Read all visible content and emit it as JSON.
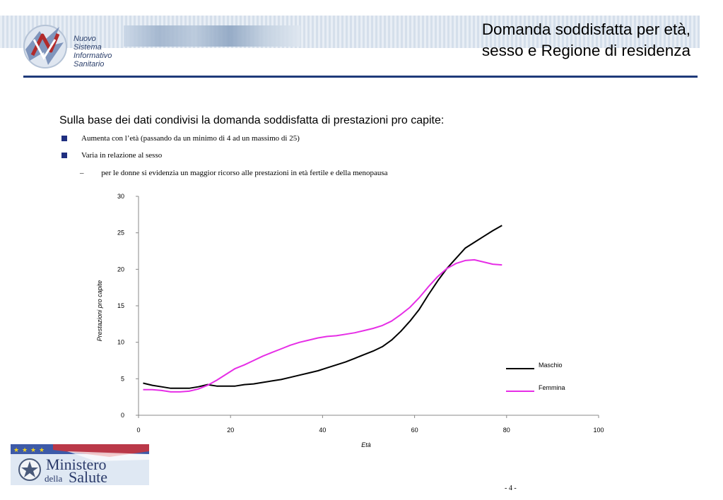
{
  "header": {
    "logo_lines": [
      "Nuovo",
      "Sistema",
      "Informativo",
      "Sanitario"
    ],
    "title_line1": "Domanda soddisfatta per età,",
    "title_line2": "sesso e Regione di residenza"
  },
  "body": {
    "intro": "Sulla base dei dati condivisi la domanda soddisfatta di prestazioni pro capite:",
    "bullet1": "Aumenta con l’età (passando da un minimo di 4 ad un massimo di 25)",
    "bullet2": "Varia in relazione al sesso",
    "sub_bullet": "per le donne si evidenzia un maggior ricorso alle prestazioni in età fertile e della menopausa"
  },
  "chart_data": {
    "type": "line",
    "xlabel": "Età",
    "ylabel": "Prestazioni pro capite",
    "xlim": [
      0,
      100
    ],
    "ylim": [
      0,
      30
    ],
    "xticks": [
      0,
      20,
      40,
      60,
      80,
      100
    ],
    "yticks": [
      0,
      5,
      10,
      15,
      20,
      25,
      30
    ],
    "grid": false,
    "legend_position": "right",
    "series": [
      {
        "name": "Maschio",
        "color": "#000000",
        "x": [
          1,
          3,
          5,
          7,
          9,
          11,
          13,
          15,
          17,
          19,
          21,
          23,
          25,
          27,
          29,
          31,
          33,
          35,
          37,
          39,
          41,
          43,
          45,
          47,
          49,
          51,
          53,
          55,
          57,
          59,
          61,
          63,
          65,
          67,
          69,
          71,
          73,
          75,
          77,
          79
        ],
        "y": [
          4.4,
          4.1,
          3.9,
          3.7,
          3.7,
          3.7,
          3.9,
          4.2,
          4.0,
          4.0,
          4.0,
          4.2,
          4.3,
          4.5,
          4.7,
          4.9,
          5.2,
          5.5,
          5.8,
          6.1,
          6.5,
          6.9,
          7.3,
          7.8,
          8.3,
          8.8,
          9.4,
          10.3,
          11.5,
          12.9,
          14.5,
          16.5,
          18.4,
          20.1,
          21.5,
          22.9,
          23.7,
          24.5,
          25.3,
          26.0
        ]
      },
      {
        "name": "Femmina",
        "color": "#e62ee6",
        "x": [
          1,
          3,
          5,
          7,
          9,
          11,
          13,
          15,
          17,
          19,
          21,
          23,
          25,
          27,
          29,
          31,
          33,
          35,
          37,
          39,
          41,
          43,
          45,
          47,
          49,
          51,
          53,
          55,
          57,
          59,
          61,
          63,
          65,
          67,
          69,
          71,
          73,
          75,
          77,
          79
        ],
        "y": [
          3.5,
          3.5,
          3.4,
          3.2,
          3.2,
          3.3,
          3.6,
          4.1,
          4.8,
          5.6,
          6.4,
          6.9,
          7.5,
          8.1,
          8.6,
          9.1,
          9.6,
          10.0,
          10.3,
          10.6,
          10.8,
          10.9,
          11.1,
          11.3,
          11.6,
          11.9,
          12.3,
          12.9,
          13.8,
          14.8,
          16.1,
          17.6,
          19.0,
          20.1,
          20.8,
          21.2,
          21.3,
          21.0,
          20.7,
          20.6
        ]
      }
    ]
  },
  "footer": {
    "ministero_line1": "Ministero",
    "ministero_line2": "della",
    "ministero_line3": "Salute",
    "page_number": "- 4 -"
  }
}
